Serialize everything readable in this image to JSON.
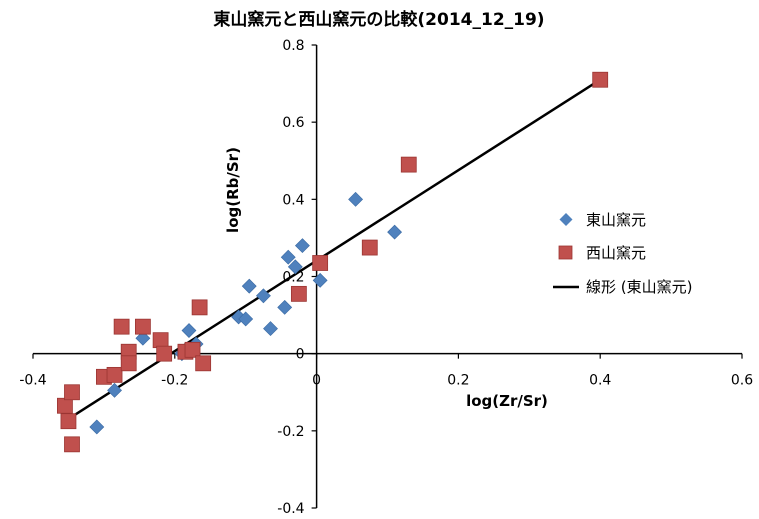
{
  "chart_data": {
    "type": "scatter",
    "title": "東山窯元と西山窯元の比較(2014_12_19)",
    "xlabel": "log(Zr/Sr)",
    "ylabel": "log(Rb/Sr)",
    "xlim": [
      -0.4,
      0.6
    ],
    "ylim": [
      -0.4,
      0.8
    ],
    "x_ticks": [
      "-0.4",
      "-0.2",
      "0",
      "0.2",
      "0.4",
      "0.6"
    ],
    "y_ticks": [
      "-0.4",
      "-0.2",
      "0",
      "0.2",
      "0.4",
      "0.6",
      "0.8"
    ],
    "grid": false,
    "legend_position": "right",
    "series": [
      {
        "name": "東山窯元",
        "marker": "diamond",
        "color": "#4f81bd",
        "points": [
          {
            "x": -0.31,
            "y": -0.19
          },
          {
            "x": -0.285,
            "y": -0.095
          },
          {
            "x": -0.245,
            "y": 0.04
          },
          {
            "x": -0.19,
            "y": 0.0
          },
          {
            "x": -0.18,
            "y": 0.06
          },
          {
            "x": -0.17,
            "y": 0.025
          },
          {
            "x": -0.11,
            "y": 0.095
          },
          {
            "x": -0.1,
            "y": 0.09
          },
          {
            "x": -0.095,
            "y": 0.175
          },
          {
            "x": -0.075,
            "y": 0.15
          },
          {
            "x": -0.065,
            "y": 0.065
          },
          {
            "x": -0.045,
            "y": 0.12
          },
          {
            "x": -0.04,
            "y": 0.25
          },
          {
            "x": -0.03,
            "y": 0.225
          },
          {
            "x": -0.02,
            "y": 0.28
          },
          {
            "x": 0.005,
            "y": 0.19
          },
          {
            "x": 0.055,
            "y": 0.4
          },
          {
            "x": 0.11,
            "y": 0.315
          }
        ]
      },
      {
        "name": "西山窯元",
        "marker": "square",
        "color": "#c0504d",
        "points": [
          {
            "x": -0.355,
            "y": -0.135
          },
          {
            "x": -0.35,
            "y": -0.175
          },
          {
            "x": -0.345,
            "y": -0.1
          },
          {
            "x": -0.345,
            "y": -0.235
          },
          {
            "x": -0.3,
            "y": -0.06
          },
          {
            "x": -0.285,
            "y": -0.055
          },
          {
            "x": -0.275,
            "y": 0.07
          },
          {
            "x": -0.265,
            "y": 0.005
          },
          {
            "x": -0.265,
            "y": -0.025
          },
          {
            "x": -0.245,
            "y": 0.07
          },
          {
            "x": -0.22,
            "y": 0.035
          },
          {
            "x": -0.215,
            "y": 0.0
          },
          {
            "x": -0.185,
            "y": 0.005
          },
          {
            "x": -0.175,
            "y": 0.01
          },
          {
            "x": -0.165,
            "y": 0.12
          },
          {
            "x": -0.16,
            "y": -0.025
          },
          {
            "x": -0.025,
            "y": 0.155
          },
          {
            "x": 0.005,
            "y": 0.235
          },
          {
            "x": 0.075,
            "y": 0.275
          },
          {
            "x": 0.13,
            "y": 0.49
          },
          {
            "x": 0.4,
            "y": 0.71
          }
        ]
      },
      {
        "name": "線形 (東山窯元)",
        "kind": "trendline",
        "color": "#000000",
        "points": [
          {
            "x": -0.355,
            "y": -0.175
          },
          {
            "x": 0.4,
            "y": 0.71
          }
        ]
      }
    ]
  }
}
